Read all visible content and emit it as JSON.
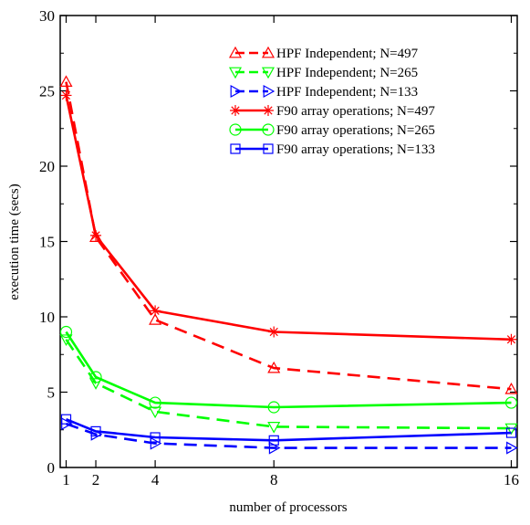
{
  "chart_data": {
    "type": "line",
    "xlabel": "number of processors",
    "ylabel": "execution time (secs)",
    "xlim": [
      0.8,
      16.2
    ],
    "ylim": [
      0,
      30
    ],
    "x_ticks": [
      1,
      2,
      4,
      8,
      16
    ],
    "x_tick_labels": [
      "1",
      "2",
      "4",
      "8",
      "16"
    ],
    "y_ticks": [
      0,
      5,
      10,
      15,
      20,
      25,
      30
    ],
    "y_tick_labels": [
      "0",
      "5",
      "10",
      "15",
      "20",
      "25",
      "30"
    ],
    "grid": false,
    "legend_position": "top-right",
    "x": [
      1,
      2,
      4,
      8,
      16
    ],
    "series": [
      {
        "name": "HPF Independent; N=497",
        "values": [
          25.6,
          15.3,
          9.8,
          6.6,
          5.2
        ],
        "color": "#ff0000",
        "dash": "dashed",
        "marker": "triangle-up"
      },
      {
        "name": "HPF Independent; N=265",
        "values": [
          8.5,
          5.6,
          3.7,
          2.7,
          2.6
        ],
        "color": "#00ff00",
        "dash": "dashed",
        "marker": "triangle-down"
      },
      {
        "name": "HPF Independent; N=133",
        "values": [
          2.9,
          2.2,
          1.6,
          1.3,
          1.3
        ],
        "color": "#0000ff",
        "dash": "dashed",
        "marker": "triangle-right"
      },
      {
        "name": "F90 array operations; N=497",
        "values": [
          24.7,
          15.4,
          10.4,
          9.0,
          8.5
        ],
        "color": "#ff0000",
        "dash": "solid",
        "marker": "star"
      },
      {
        "name": "F90 array operations; N=265",
        "values": [
          9.0,
          6.0,
          4.3,
          4.0,
          4.3
        ],
        "color": "#00ff00",
        "dash": "solid",
        "marker": "circle"
      },
      {
        "name": "F90 array operations; N=133",
        "values": [
          3.2,
          2.4,
          2.0,
          1.8,
          2.3
        ],
        "color": "#0000ff",
        "dash": "solid",
        "marker": "square"
      }
    ]
  }
}
